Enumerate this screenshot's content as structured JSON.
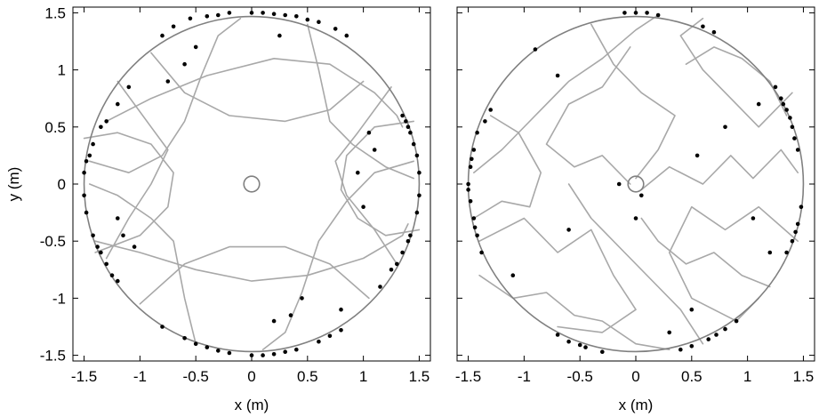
{
  "chart_data": [
    {
      "type": "scatter",
      "panel": "left",
      "xlabel": "x (m)",
      "ylabel": "y (m)",
      "xlim": [
        -1.6,
        1.6
      ],
      "ylim": [
        -1.55,
        1.55
      ],
      "xticks": [
        -1.5,
        -1,
        -0.5,
        0,
        0.5,
        1,
        1.5
      ],
      "yticks": [
        -1.5,
        -1,
        -0.5,
        0,
        0.5,
        1,
        1.5
      ],
      "xtick_labels": [
        "-1.5",
        "-1",
        "-0.5",
        "0",
        "0.5",
        "1",
        "1.5"
      ],
      "ytick_labels": [
        "-1.5",
        "-1",
        "-0.5",
        "0",
        "0.5",
        "1",
        "1.5"
      ],
      "boundary_circle": {
        "center": [
          0,
          0
        ],
        "radius": 1.5,
        "color": "#808080"
      },
      "center_circle": {
        "center": [
          0,
          0
        ],
        "radius": 0.07,
        "color": "#808080"
      },
      "trajectory_color": "#a8a8a8",
      "point_color": "#000000",
      "grid": false,
      "legend": "none",
      "trajectories": [
        [
          [
            -1.3,
            0.55
          ],
          [
            -0.9,
            0.75
          ],
          [
            -0.4,
            0.95
          ],
          [
            0.2,
            1.1
          ],
          [
            0.7,
            1.05
          ],
          [
            1.1,
            0.8
          ],
          [
            1.3,
            0.6
          ],
          [
            1.35,
            0.5
          ]
        ],
        [
          [
            -1.4,
            -0.5
          ],
          [
            -1.0,
            -0.6
          ],
          [
            -0.5,
            -0.75
          ],
          [
            0,
            -0.85
          ],
          [
            0.5,
            -0.8
          ],
          [
            1.0,
            -0.65
          ],
          [
            1.35,
            -0.45
          ],
          [
            1.4,
            -0.35
          ]
        ],
        [
          [
            -1.45,
            0.2
          ],
          [
            -1.1,
            0.1
          ],
          [
            -0.8,
            0.25
          ],
          [
            -0.6,
            0.55
          ],
          [
            -0.45,
            0.95
          ],
          [
            -0.3,
            1.3
          ],
          [
            -0.1,
            1.45
          ]
        ],
        [
          [
            1.45,
            0.2
          ],
          [
            1.1,
            0.1
          ],
          [
            0.85,
            -0.15
          ],
          [
            0.6,
            -0.5
          ],
          [
            0.45,
            -0.95
          ],
          [
            0.3,
            -1.3
          ],
          [
            0.1,
            -1.45
          ]
        ],
        [
          [
            -1.2,
            0.9
          ],
          [
            -0.9,
            0.5
          ],
          [
            -0.75,
            0.3
          ],
          [
            -0.9,
            0.0
          ],
          [
            -1.1,
            -0.3
          ],
          [
            -1.3,
            -0.65
          ]
        ],
        [
          [
            1.25,
            0.85
          ],
          [
            0.95,
            0.45
          ],
          [
            0.75,
            0.2
          ],
          [
            0.85,
            -0.1
          ],
          [
            1.1,
            -0.4
          ],
          [
            1.3,
            -0.7
          ]
        ],
        [
          [
            -0.5,
            -1.4
          ],
          [
            -0.6,
            -1.0
          ],
          [
            -0.7,
            -0.5
          ],
          [
            -0.9,
            -0.3
          ],
          [
            -1.2,
            -0.1
          ],
          [
            -1.45,
            0.0
          ]
        ],
        [
          [
            0.5,
            1.4
          ],
          [
            0.6,
            1.0
          ],
          [
            0.7,
            0.55
          ],
          [
            0.9,
            0.35
          ],
          [
            1.2,
            0.15
          ],
          [
            1.45,
            0.05
          ]
        ],
        [
          [
            -0.9,
            1.15
          ],
          [
            -0.6,
            0.8
          ],
          [
            -0.2,
            0.6
          ],
          [
            0.3,
            0.55
          ],
          [
            0.7,
            0.65
          ],
          [
            1.0,
            0.9
          ]
        ],
        [
          [
            -1.0,
            -1.05
          ],
          [
            -0.6,
            -0.7
          ],
          [
            -0.2,
            -0.55
          ],
          [
            0.3,
            -0.55
          ],
          [
            0.7,
            -0.7
          ],
          [
            1.05,
            -1.0
          ]
        ],
        [
          [
            -1.5,
            0.4
          ],
          [
            -1.2,
            0.45
          ],
          [
            -0.9,
            0.35
          ],
          [
            -0.7,
            0.1
          ],
          [
            -0.75,
            -0.2
          ],
          [
            -1.0,
            -0.45
          ],
          [
            -1.4,
            -0.6
          ]
        ],
        [
          [
            1.5,
            -0.4
          ],
          [
            1.2,
            -0.45
          ],
          [
            0.95,
            -0.3
          ],
          [
            0.8,
            -0.05
          ],
          [
            0.85,
            0.25
          ],
          [
            1.1,
            0.5
          ],
          [
            1.45,
            0.55
          ]
        ]
      ],
      "points": [
        [
          -0.55,
          1.45
        ],
        [
          -0.4,
          1.47
        ],
        [
          -0.2,
          1.5
        ],
        [
          0.0,
          1.5
        ],
        [
          0.2,
          1.49
        ],
        [
          0.4,
          1.47
        ],
        [
          0.6,
          1.42
        ],
        [
          0.75,
          1.36
        ],
        [
          -0.7,
          1.38
        ],
        [
          -0.8,
          1.3
        ],
        [
          -0.3,
          1.48
        ],
        [
          0.1,
          1.5
        ],
        [
          0.3,
          1.48
        ],
        [
          0.5,
          1.44
        ],
        [
          0.85,
          1.3
        ],
        [
          -1.1,
          0.85
        ],
        [
          -1.3,
          0.55
        ],
        [
          -1.45,
          0.25
        ],
        [
          -1.5,
          0.1
        ],
        [
          -1.48,
          0.2
        ],
        [
          -1.42,
          0.35
        ],
        [
          -1.35,
          0.5
        ],
        [
          -1.2,
          0.7
        ],
        [
          -1.5,
          -0.1
        ],
        [
          -1.48,
          -0.25
        ],
        [
          -1.42,
          -0.45
        ],
        [
          -1.35,
          -0.6
        ],
        [
          -1.3,
          -0.7
        ],
        [
          -1.25,
          -0.8
        ],
        [
          -1.2,
          -0.85
        ],
        [
          -1.38,
          -0.55
        ],
        [
          -0.8,
          -1.25
        ],
        [
          -0.6,
          -1.35
        ],
        [
          -0.4,
          -1.43
        ],
        [
          -0.2,
          -1.48
        ],
        [
          0.0,
          -1.5
        ],
        [
          0.2,
          -1.49
        ],
        [
          0.4,
          -1.45
        ],
        [
          0.6,
          -1.38
        ],
        [
          -0.5,
          -1.4
        ],
        [
          -0.3,
          -1.46
        ],
        [
          0.1,
          -1.5
        ],
        [
          0.3,
          -1.47
        ],
        [
          0.7,
          -1.33
        ],
        [
          0.8,
          -1.28
        ],
        [
          1.15,
          -0.9
        ],
        [
          1.25,
          -0.75
        ],
        [
          1.35,
          -0.6
        ],
        [
          1.42,
          -0.45
        ],
        [
          1.48,
          -0.25
        ],
        [
          1.5,
          -0.1
        ],
        [
          1.3,
          -0.7
        ],
        [
          1.4,
          -0.5
        ],
        [
          1.5,
          0.1
        ],
        [
          1.48,
          0.25
        ],
        [
          1.45,
          0.35
        ],
        [
          1.42,
          0.45
        ],
        [
          1.38,
          0.55
        ],
        [
          1.35,
          0.6
        ],
        [
          1.4,
          0.5
        ],
        [
          1.05,
          0.45
        ],
        [
          1.1,
          0.3
        ],
        [
          0.95,
          0.1
        ],
        [
          1.0,
          -0.2
        ],
        [
          -1.15,
          -0.45
        ],
        [
          -1.05,
          -0.55
        ],
        [
          -1.2,
          -0.3
        ],
        [
          0.45,
          -1.0
        ],
        [
          0.35,
          -1.15
        ],
        [
          0.2,
          -1.2
        ],
        [
          -0.5,
          1.2
        ],
        [
          -0.6,
          1.05
        ],
        [
          0.25,
          1.3
        ],
        [
          -0.75,
          0.9
        ],
        [
          0.8,
          -1.1
        ]
      ]
    },
    {
      "type": "scatter",
      "panel": "right",
      "xlabel": "x (m)",
      "ylabel": "",
      "xlim": [
        -1.6,
        1.6
      ],
      "ylim": [
        -1.55,
        1.55
      ],
      "xticks": [
        -1.5,
        -1,
        -0.5,
        0,
        0.5,
        1,
        1.5
      ],
      "xtick_labels": [
        "-1.5",
        "-1",
        "-0.5",
        "0",
        "0.5",
        "1",
        "1.5"
      ],
      "boundary_circle": {
        "center": [
          0,
          0
        ],
        "radius": 1.5,
        "color": "#808080"
      },
      "center_circle": {
        "center": [
          0,
          0
        ],
        "radius": 0.07,
        "color": "#808080"
      },
      "trajectory_color": "#a8a8a8",
      "point_color": "#000000",
      "grid": false,
      "legend": "none",
      "trajectories": [
        [
          [
            -1.45,
            0.1
          ],
          [
            -1.2,
            0.3
          ],
          [
            -0.9,
            0.6
          ],
          [
            -0.6,
            0.9
          ],
          [
            -0.3,
            1.1
          ],
          [
            0.0,
            1.35
          ],
          [
            0.2,
            1.48
          ]
        ],
        [
          [
            -1.4,
            -0.5
          ],
          [
            -1.0,
            -0.3
          ],
          [
            -0.7,
            -0.6
          ],
          [
            -0.4,
            -0.4
          ],
          [
            -0.2,
            -0.8
          ],
          [
            0.0,
            -1.1
          ],
          [
            -0.3,
            -1.3
          ],
          [
            -0.7,
            -1.25
          ]
        ],
        [
          [
            1.4,
            0.8
          ],
          [
            1.1,
            0.5
          ],
          [
            0.9,
            0.7
          ],
          [
            0.6,
            1.0
          ],
          [
            0.4,
            1.3
          ],
          [
            0.6,
            1.45
          ]
        ],
        [
          [
            1.45,
            -0.5
          ],
          [
            1.1,
            -0.2
          ],
          [
            0.8,
            -0.4
          ],
          [
            0.5,
            -0.2
          ],
          [
            0.3,
            -0.6
          ],
          [
            0.5,
            -1.0
          ],
          [
            0.9,
            -1.2
          ],
          [
            1.1,
            -1.0
          ]
        ],
        [
          [
            -0.05,
            0.0
          ],
          [
            -0.3,
            0.25
          ],
          [
            -0.55,
            0.15
          ],
          [
            -0.8,
            0.35
          ],
          [
            -0.6,
            0.7
          ],
          [
            -0.3,
            0.85
          ],
          [
            -0.05,
            1.2
          ]
        ],
        [
          [
            0.05,
            -0.05
          ],
          [
            0.3,
            0.15
          ],
          [
            0.6,
            0.0
          ],
          [
            0.85,
            0.25
          ],
          [
            1.05,
            0.05
          ],
          [
            1.3,
            0.3
          ],
          [
            1.45,
            0.1
          ]
        ],
        [
          [
            -1.4,
            -0.8
          ],
          [
            -1.1,
            -1.0
          ],
          [
            -0.8,
            -0.95
          ],
          [
            -0.55,
            -1.15
          ],
          [
            -0.3,
            -1.2
          ],
          [
            0.0,
            -1.4
          ],
          [
            0.3,
            -1.45
          ]
        ],
        [
          [
            1.2,
            -0.9
          ],
          [
            0.95,
            -0.8
          ],
          [
            0.7,
            -0.6
          ],
          [
            0.45,
            -0.7
          ],
          [
            0.2,
            -0.5
          ],
          [
            0.05,
            -0.3
          ]
        ],
        [
          [
            -1.3,
            0.6
          ],
          [
            -1.05,
            0.45
          ],
          [
            -0.85,
            0.1
          ],
          [
            -0.95,
            -0.2
          ],
          [
            -1.2,
            -0.15
          ],
          [
            -1.45,
            -0.3
          ]
        ],
        [
          [
            1.35,
            0.6
          ],
          [
            1.2,
            0.9
          ],
          [
            0.95,
            1.1
          ],
          [
            0.7,
            1.2
          ],
          [
            0.45,
            1.05
          ]
        ],
        [
          [
            -0.4,
            1.4
          ],
          [
            -0.2,
            1.05
          ],
          [
            0.05,
            0.8
          ],
          [
            0.35,
            0.6
          ],
          [
            0.2,
            0.3
          ],
          [
            0.0,
            0.05
          ]
        ],
        [
          [
            0.6,
            -1.4
          ],
          [
            0.4,
            -1.1
          ],
          [
            0.2,
            -0.9
          ],
          [
            -0.1,
            -0.6
          ],
          [
            -0.4,
            -0.3
          ],
          [
            -0.6,
            0.0
          ]
        ]
      ],
      "points": [
        [
          -1.5,
          0.0
        ],
        [
          -1.48,
          0.15
        ],
        [
          -1.45,
          0.3
        ],
        [
          -1.42,
          0.45
        ],
        [
          -1.48,
          -0.15
        ],
        [
          -1.45,
          -0.3
        ],
        [
          -1.42,
          -0.45
        ],
        [
          -1.38,
          -0.6
        ],
        [
          -1.35,
          0.55
        ],
        [
          -1.3,
          0.65
        ],
        [
          -1.5,
          -0.05
        ],
        [
          -1.47,
          0.22
        ],
        [
          -1.44,
          -0.38
        ],
        [
          1.35,
          0.65
        ],
        [
          1.4,
          0.5
        ],
        [
          1.42,
          0.4
        ],
        [
          1.3,
          0.75
        ],
        [
          1.25,
          0.85
        ],
        [
          1.45,
          0.3
        ],
        [
          1.38,
          0.58
        ],
        [
          1.32,
          0.7
        ],
        [
          1.45,
          -0.35
        ],
        [
          1.4,
          -0.5
        ],
        [
          1.35,
          -0.6
        ],
        [
          1.48,
          -0.2
        ],
        [
          1.43,
          -0.42
        ],
        [
          -0.6,
          -1.38
        ],
        [
          -0.45,
          -1.43
        ],
        [
          -0.3,
          -1.47
        ],
        [
          -0.7,
          -1.32
        ],
        [
          -0.5,
          -1.41
        ],
        [
          0.5,
          -1.42
        ],
        [
          0.65,
          -1.36
        ],
        [
          0.8,
          -1.27
        ],
        [
          0.9,
          -1.2
        ],
        [
          0.4,
          -1.45
        ],
        [
          0.72,
          -1.32
        ],
        [
          -0.1,
          1.5
        ],
        [
          0.1,
          1.5
        ],
        [
          0.2,
          1.48
        ],
        [
          0.0,
          1.5
        ],
        [
          0.6,
          1.38
        ],
        [
          0.7,
          1.33
        ],
        [
          -0.9,
          1.18
        ],
        [
          0.05,
          -0.1
        ],
        [
          -0.15,
          0.0
        ],
        [
          0.0,
          -0.3
        ],
        [
          0.5,
          -1.1
        ],
        [
          -0.6,
          -0.4
        ],
        [
          0.8,
          0.5
        ],
        [
          1.1,
          0.7
        ],
        [
          -1.1,
          -0.8
        ],
        [
          0.3,
          -1.3
        ],
        [
          -0.7,
          0.95
        ],
        [
          1.2,
          -0.6
        ],
        [
          0.55,
          0.25
        ],
        [
          1.05,
          -0.3
        ]
      ]
    }
  ]
}
